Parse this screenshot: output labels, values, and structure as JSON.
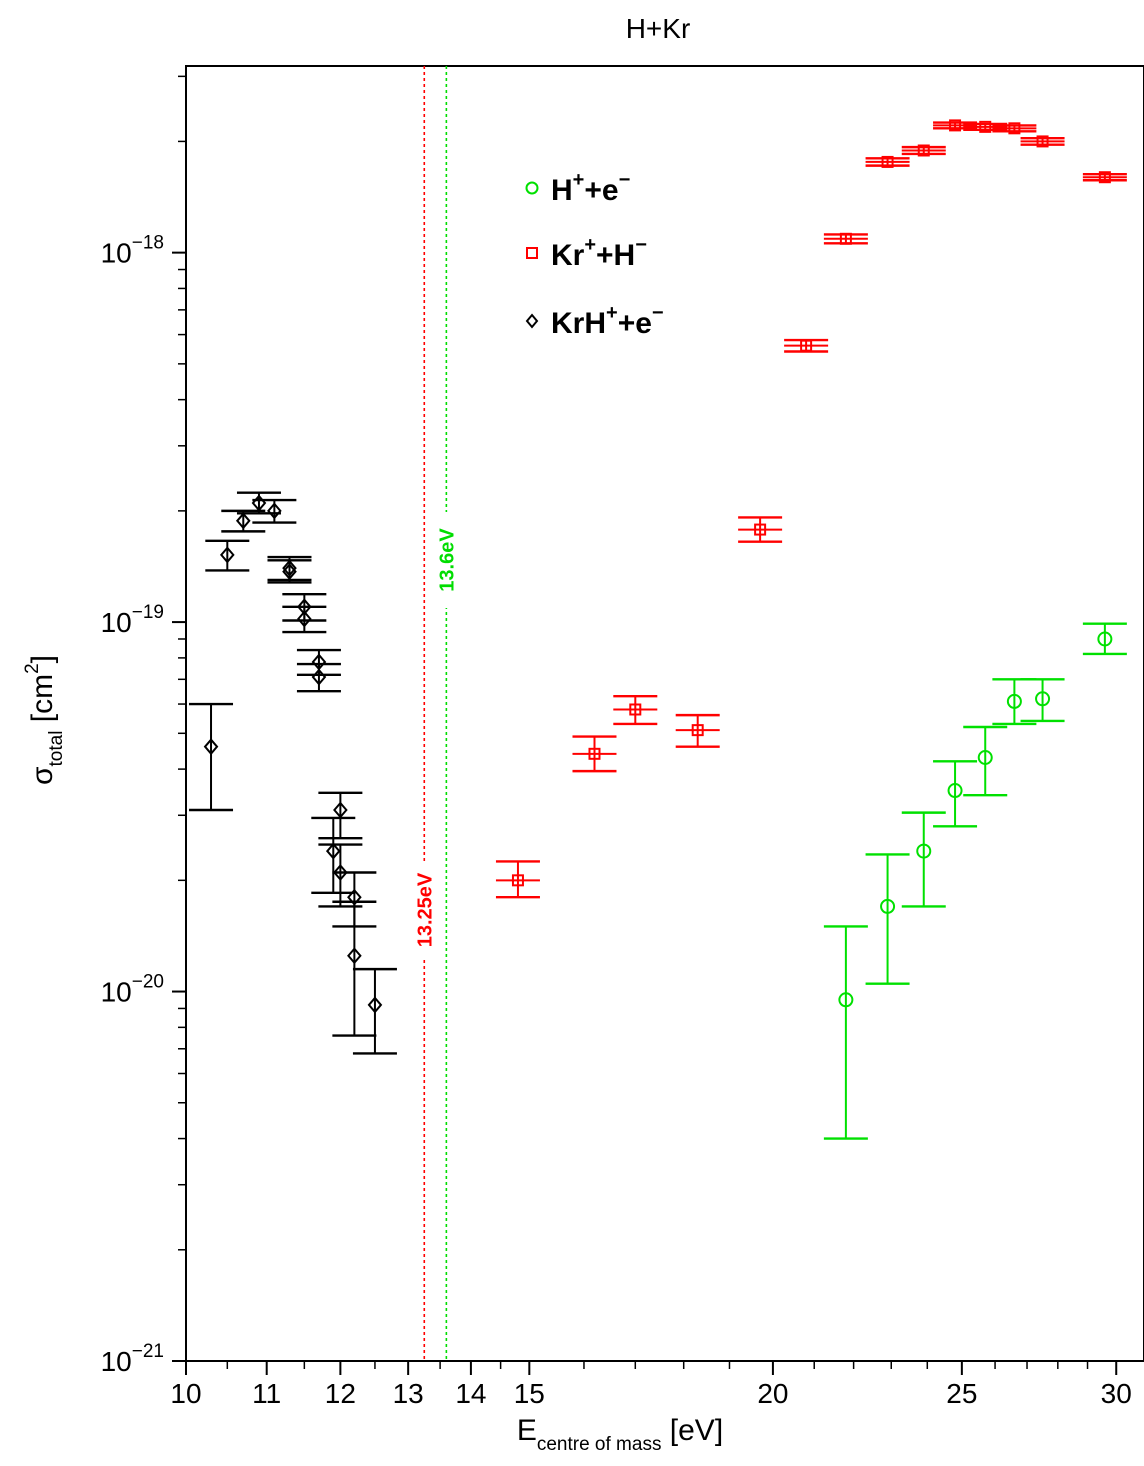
{
  "chart_data": {
    "type": "scatter",
    "title": "H+Kr",
    "xlabel": {
      "main": "E",
      "sub": "centre of mass",
      "unit": " [eV]"
    },
    "ylabel": {
      "main": "σ",
      "sub": "total",
      "unit": " [cm",
      "sup": "2",
      "close": "]"
    },
    "xscale": "log",
    "yscale": "log",
    "xlim": [
      10,
      31
    ],
    "ylim": [
      1e-21,
      3.2e-18
    ],
    "x_ticks": [
      {
        "value": 10,
        "label": "10"
      },
      {
        "value": 11,
        "label": "11"
      },
      {
        "value": 12,
        "label": "12"
      },
      {
        "value": 13,
        "label": "13"
      },
      {
        "value": 14,
        "label": "14"
      },
      {
        "value": 15,
        "label": "15"
      },
      {
        "value": 20,
        "label": "20"
      },
      {
        "value": 25,
        "label": "25"
      },
      {
        "value": 30,
        "label": "30"
      }
    ],
    "y_ticks": [
      {
        "value": 1e-21,
        "base": "10",
        "exp": "−21"
      },
      {
        "value": 1e-20,
        "base": "10",
        "exp": "−20"
      },
      {
        "value": 1e-19,
        "base": "10",
        "exp": "−19"
      },
      {
        "value": 1e-18,
        "base": "10",
        "exp": "−18"
      }
    ],
    "grid": false,
    "legend_position": "top-left-center",
    "vlines": [
      {
        "x": 13.25,
        "label": "13.25eV",
        "color": "#ff0000"
      },
      {
        "x": 13.6,
        "label": "13.6eV",
        "color": "#00dd00"
      }
    ],
    "series": [
      {
        "name": "H⁺+e⁻",
        "legend": {
          "base": "H",
          "sup1": "+",
          "mid": "+e",
          "sup2": "−"
        },
        "color": "#00e000",
        "marker": "circle",
        "points": [
          {
            "x": 21.8,
            "y": 9.5e-21,
            "lo": 4e-21,
            "hi": 1.5e-20
          },
          {
            "x": 22.9,
            "y": 1.7e-20,
            "lo": 1.05e-20,
            "hi": 2.35e-20
          },
          {
            "x": 23.9,
            "y": 2.4e-20,
            "lo": 1.7e-20,
            "hi": 3.05e-20
          },
          {
            "x": 24.8,
            "y": 3.5e-20,
            "lo": 2.8e-20,
            "hi": 4.2e-20
          },
          {
            "x": 25.7,
            "y": 4.3e-20,
            "lo": 3.4e-20,
            "hi": 5.2e-20
          },
          {
            "x": 26.6,
            "y": 6.1e-20,
            "lo": 5.3e-20,
            "hi": 7e-20
          },
          {
            "x": 27.5,
            "y": 6.2e-20,
            "lo": 5.4e-20,
            "hi": 7e-20
          },
          {
            "x": 29.6,
            "y": 9e-20,
            "lo": 8.2e-20,
            "hi": 9.9e-20
          }
        ]
      },
      {
        "name": "Kr⁺+H⁻",
        "legend": {
          "base": "Kr",
          "sup1": "+",
          "mid": "+H",
          "sup2": "−"
        },
        "color": "#ff0000",
        "marker": "square",
        "points": [
          {
            "x": 14.8,
            "y": 2e-20,
            "lo": 1.8e-20,
            "hi": 2.25e-20
          },
          {
            "x": 16.2,
            "y": 4.4e-20,
            "lo": 3.95e-20,
            "hi": 4.9e-20
          },
          {
            "x": 17.0,
            "y": 5.8e-20,
            "lo": 5.3e-20,
            "hi": 6.3e-20
          },
          {
            "x": 18.3,
            "y": 5.1e-20,
            "lo": 4.6e-20,
            "hi": 5.6e-20
          },
          {
            "x": 19.7,
            "y": 1.78e-19,
            "lo": 1.65e-19,
            "hi": 1.92e-19
          },
          {
            "x": 20.8,
            "y": 5.6e-19,
            "lo": 5.4e-19,
            "hi": 5.8e-19
          },
          {
            "x": 21.8,
            "y": 1.09e-18,
            "lo": 1.06e-18,
            "hi": 1.12e-18
          },
          {
            "x": 22.9,
            "y": 1.76e-18,
            "lo": 1.72e-18,
            "hi": 1.8e-18
          },
          {
            "x": 23.9,
            "y": 1.89e-18,
            "lo": 1.85e-18,
            "hi": 1.93e-18
          },
          {
            "x": 24.8,
            "y": 2.21e-18,
            "lo": 2.17e-18,
            "hi": 2.25e-18
          },
          {
            "x": 25.7,
            "y": 2.19e-18,
            "lo": 2.15e-18,
            "hi": 2.23e-18
          },
          {
            "x": 26.6,
            "y": 2.17e-18,
            "lo": 2.13e-18,
            "hi": 2.21e-18
          },
          {
            "x": 27.5,
            "y": 2e-18,
            "lo": 1.96e-18,
            "hi": 2.04e-18
          },
          {
            "x": 29.6,
            "y": 1.6e-18,
            "lo": 1.57e-18,
            "hi": 1.63e-18
          }
        ]
      },
      {
        "name": "KrH⁺+e⁻",
        "legend": {
          "base": "KrH",
          "sup1": "+",
          "mid": "+e",
          "sup2": "−"
        },
        "color": "#000000",
        "marker": "diamond",
        "points": [
          {
            "x": 10.3,
            "y": 4.6e-20,
            "lo": 3.1e-20,
            "hi": 6e-20
          },
          {
            "x": 10.5,
            "y": 1.52e-19,
            "lo": 1.38e-19,
            "hi": 1.66e-19
          },
          {
            "x": 10.7,
            "y": 1.88e-19,
            "lo": 1.76e-19,
            "hi": 2e-19
          },
          {
            "x": 10.9,
            "y": 2.1e-19,
            "lo": 1.97e-19,
            "hi": 2.24e-19
          },
          {
            "x": 11.1,
            "y": 2e-19,
            "lo": 1.86e-19,
            "hi": 2.14e-19
          },
          {
            "x": 11.3,
            "y": 1.4e-19,
            "lo": 1.3e-19,
            "hi": 1.5e-19
          },
          {
            "x": 11.3,
            "y": 1.37e-19,
            "lo": 1.28e-19,
            "hi": 1.47e-19
          },
          {
            "x": 11.5,
            "y": 1.1e-19,
            "lo": 1.01e-19,
            "hi": 1.19e-19
          },
          {
            "x": 11.5,
            "y": 1.02e-19,
            "lo": 9.4e-20,
            "hi": 1.1e-19
          },
          {
            "x": 11.7,
            "y": 7.8e-20,
            "lo": 7.2e-20,
            "hi": 8.4e-20
          },
          {
            "x": 11.7,
            "y": 7.1e-20,
            "lo": 6.5e-20,
            "hi": 7.7e-20
          },
          {
            "x": 11.9,
            "y": 2.4e-20,
            "lo": 1.85e-20,
            "hi": 2.95e-20
          },
          {
            "x": 12.0,
            "y": 3.1e-20,
            "lo": 2.6e-20,
            "hi": 3.45e-20
          },
          {
            "x": 12.0,
            "y": 2.1e-20,
            "lo": 1.7e-20,
            "hi": 2.5e-20
          },
          {
            "x": 12.2,
            "y": 1.8e-20,
            "lo": 1.5e-20,
            "hi": 2.1e-20
          },
          {
            "x": 12.2,
            "y": 1.25e-20,
            "lo": 7.6e-21,
            "hi": 1.75e-20
          },
          {
            "x": 12.5,
            "y": 9.2e-21,
            "lo": 6.8e-21,
            "hi": 1.15e-20
          }
        ]
      }
    ]
  }
}
